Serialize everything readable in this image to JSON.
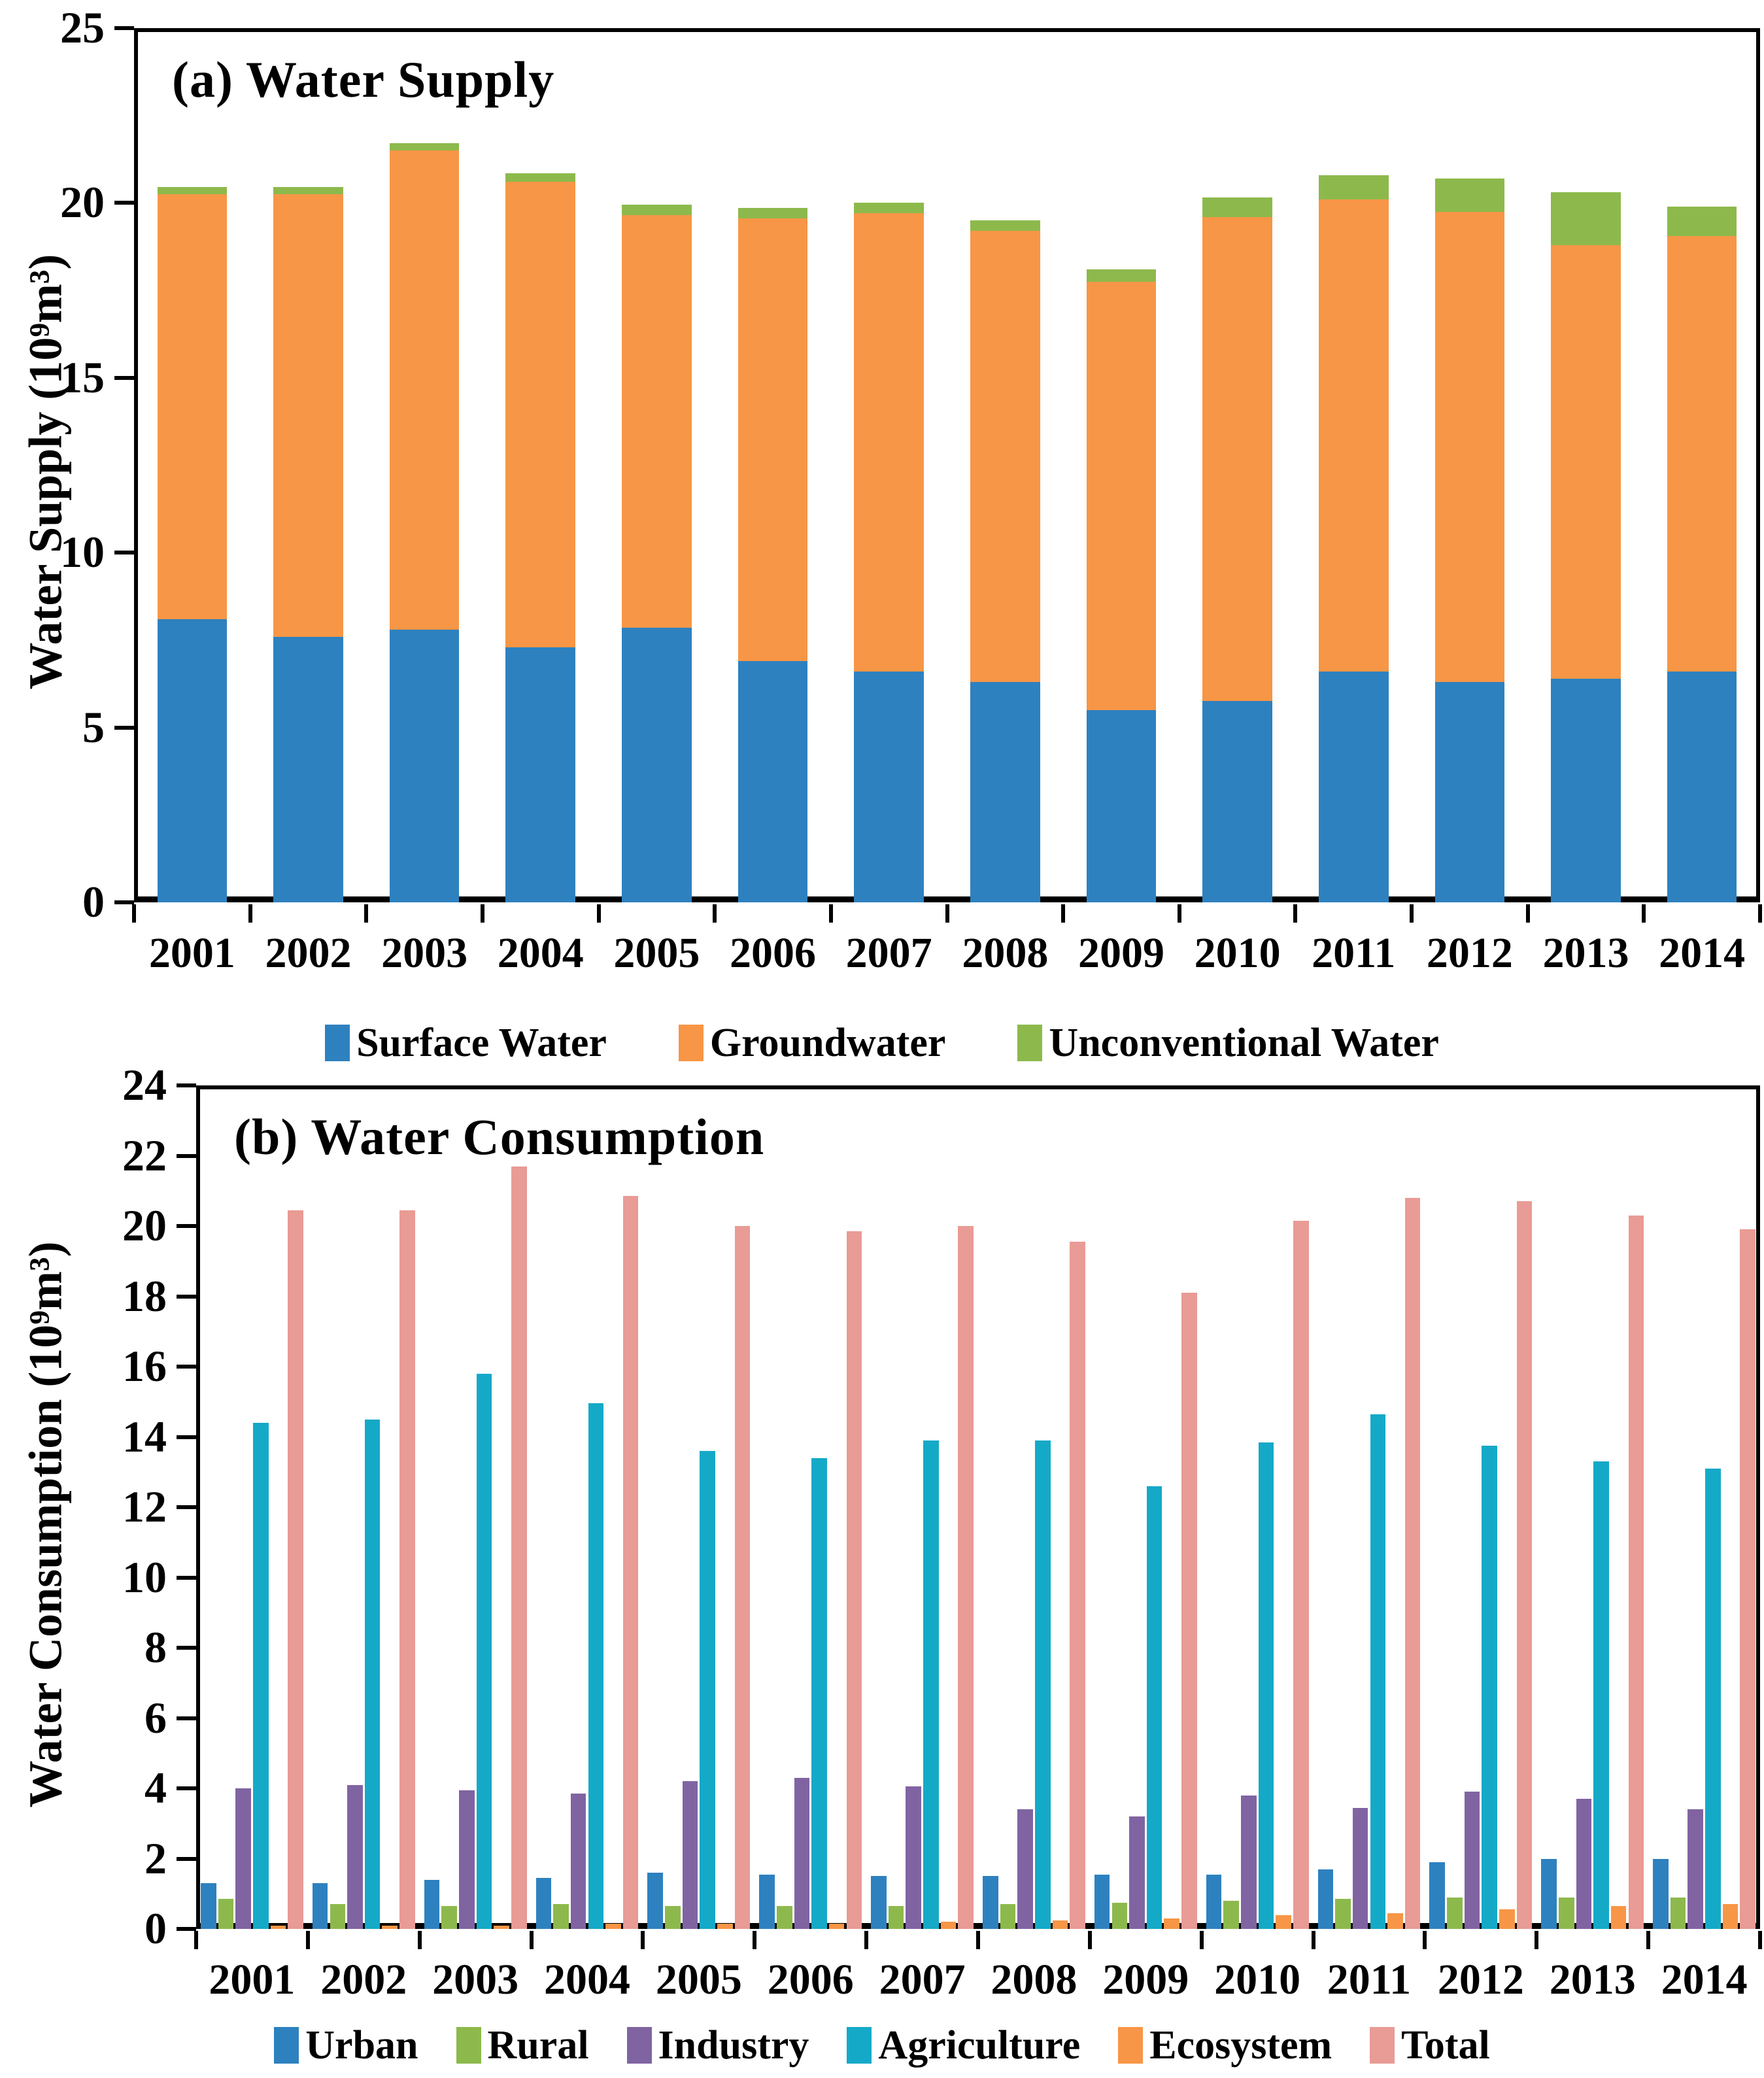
{
  "figure": {
    "panel_a_title": "(a) Water Supply",
    "panel_b_title": "(b) Water Consumption",
    "panel_a_y_title": "Water Supply (10⁹m³)",
    "panel_b_y_title": "Water Consumption (10⁹m³)"
  },
  "colors": {
    "blue": "#2E81BF",
    "orange": "#F79646",
    "green": "#8DB94C",
    "purple": "#8064A2",
    "teal": "#15A9C8",
    "pink": "#E99B95",
    "axis": "#000000"
  },
  "chart_data": [
    {
      "id": "water-supply",
      "type": "bar",
      "stacked": true,
      "title": "(a) Water Supply",
      "ylabel": "Water Supply (10⁹m³)",
      "xlabel": "",
      "ylim": [
        0,
        25
      ],
      "yticks": [
        0,
        5,
        10,
        15,
        20,
        25
      ],
      "grid": false,
      "legend_position": "bottom",
      "categories": [
        "2001",
        "2002",
        "2003",
        "2004",
        "2005",
        "2006",
        "2007",
        "2008",
        "2009",
        "2010",
        "2011",
        "2012",
        "2013",
        "2014"
      ],
      "series": [
        {
          "name": "Surface Water",
          "color": "#2E81BF",
          "values": [
            8.1,
            7.6,
            7.8,
            7.3,
            7.85,
            6.9,
            6.6,
            6.3,
            5.5,
            5.75,
            6.6,
            6.3,
            6.4,
            6.6
          ]
        },
        {
          "name": "Groundwater",
          "color": "#F79646",
          "values": [
            12.15,
            12.65,
            13.7,
            13.3,
            11.8,
            12.65,
            13.1,
            12.9,
            12.25,
            13.85,
            13.5,
            13.45,
            12.4,
            12.45
          ]
        },
        {
          "name": "Unconventional Water",
          "color": "#8DB94C",
          "values": [
            0.2,
            0.2,
            0.2,
            0.25,
            0.3,
            0.3,
            0.3,
            0.3,
            0.35,
            0.55,
            0.7,
            0.95,
            1.5,
            0.85
          ]
        }
      ]
    },
    {
      "id": "water-consumption",
      "type": "bar",
      "stacked": false,
      "title": "(b) Water Consumption",
      "ylabel": "Water Consumption (10⁹m³)",
      "xlabel": "",
      "ylim": [
        0,
        24
      ],
      "yticks": [
        0,
        2,
        4,
        6,
        8,
        10,
        12,
        14,
        16,
        18,
        20,
        22,
        24
      ],
      "grid": false,
      "legend_position": "bottom",
      "categories": [
        "2001",
        "2002",
        "2003",
        "2004",
        "2005",
        "2006",
        "2007",
        "2008",
        "2009",
        "2010",
        "2011",
        "2012",
        "2013",
        "2014"
      ],
      "series": [
        {
          "name": "Urban",
          "color": "#2E81BF",
          "values": [
            1.3,
            1.3,
            1.4,
            1.45,
            1.6,
            1.55,
            1.5,
            1.5,
            1.55,
            1.55,
            1.7,
            1.9,
            2.0,
            2.0
          ]
        },
        {
          "name": "Rural",
          "color": "#8DB94C",
          "values": [
            0.85,
            0.7,
            0.65,
            0.7,
            0.65,
            0.65,
            0.65,
            0.7,
            0.75,
            0.8,
            0.85,
            0.9,
            0.9,
            0.9
          ]
        },
        {
          "name": "Industry",
          "color": "#8064A2",
          "values": [
            4.0,
            4.1,
            3.95,
            3.85,
            4.2,
            4.3,
            4.05,
            3.4,
            3.2,
            3.8,
            3.45,
            3.9,
            3.7,
            3.4
          ]
        },
        {
          "name": "Agriculture",
          "color": "#15A9C8",
          "values": [
            14.4,
            14.5,
            15.8,
            14.95,
            13.6,
            13.4,
            13.9,
            13.9,
            12.6,
            13.85,
            14.65,
            13.75,
            13.3,
            13.1
          ]
        },
        {
          "name": "Ecosystem",
          "color": "#F79646",
          "values": [
            0.1,
            0.1,
            0.1,
            0.15,
            0.15,
            0.15,
            0.2,
            0.25,
            0.3,
            0.4,
            0.45,
            0.55,
            0.65,
            0.7
          ]
        },
        {
          "name": "Total",
          "color": "#E99B95",
          "values": [
            20.45,
            20.45,
            21.7,
            20.85,
            20.0,
            19.85,
            20.0,
            19.55,
            18.1,
            20.15,
            20.8,
            20.7,
            20.3,
            19.9
          ]
        }
      ]
    }
  ]
}
